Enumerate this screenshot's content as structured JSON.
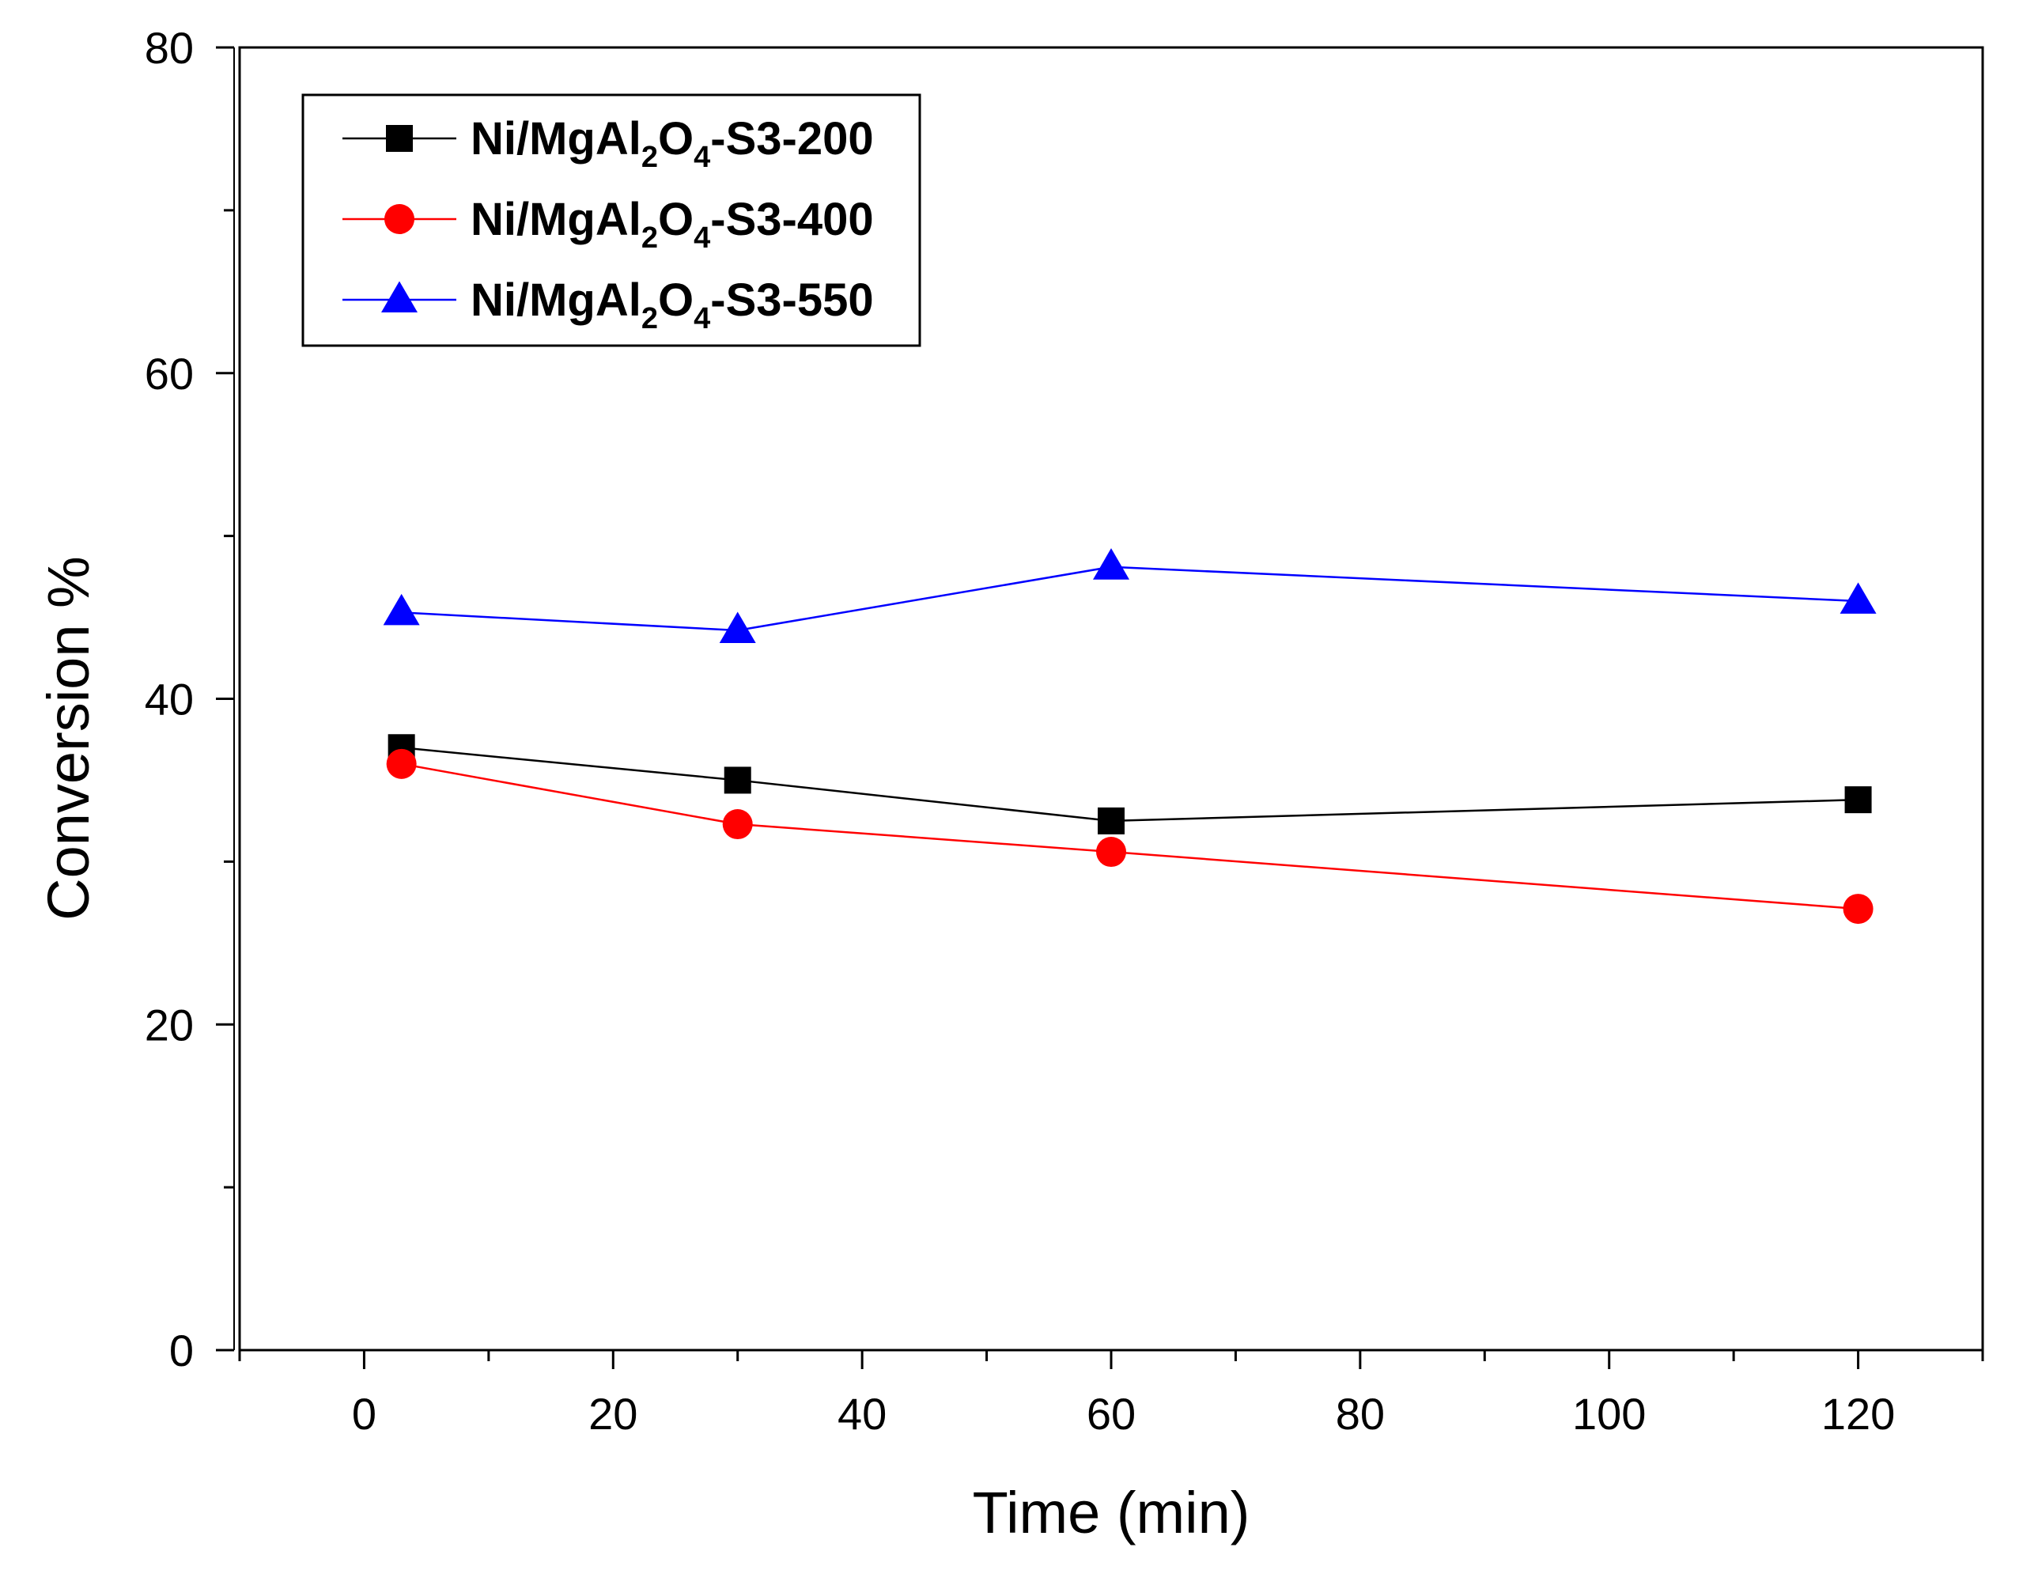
{
  "chart_data": {
    "type": "line",
    "title": "",
    "xlabel": "Time (min)",
    "ylabel": "Conversion %",
    "xlim": [
      -10,
      130
    ],
    "ylim": [
      0,
      80
    ],
    "x_ticks": [
      0,
      20,
      40,
      60,
      80,
      100,
      120
    ],
    "y_ticks": [
      0,
      20,
      40,
      60,
      80
    ],
    "x_tick_labels": [
      "0",
      "20",
      "40",
      "60",
      "80",
      "100",
      "120"
    ],
    "y_tick_labels": [
      "0",
      "20",
      "40",
      "60",
      "80"
    ],
    "x": [
      3,
      30,
      60,
      120
    ],
    "legend_position": "top-left",
    "series": [
      {
        "name": "Ni/MgAl2O4-S3-200",
        "legend_parts": {
          "a": "Ni/MgAl",
          "sub1": "2",
          "b": "O",
          "sub2": "4",
          "c": "-S3-200"
        },
        "color": "#000000",
        "marker": "square",
        "values": [
          37,
          35,
          32.5,
          33.8
        ]
      },
      {
        "name": "Ni/MgAl2O4-S3-400",
        "legend_parts": {
          "a": "Ni/MgAl",
          "sub1": "2",
          "b": "O",
          "sub2": "4",
          "c": "-S3-400"
        },
        "color": "#ff0000",
        "marker": "circle",
        "values": [
          36,
          32.3,
          30.6,
          27.1
        ]
      },
      {
        "name": "Ni/MgAl2O4-S3-550",
        "legend_parts": {
          "a": "Ni/MgAl",
          "sub1": "2",
          "b": "O",
          "sub2": "4",
          "c": "-S3-550"
        },
        "color": "#0000ff",
        "marker": "triangle",
        "values": [
          45.3,
          44.2,
          48.1,
          46
        ]
      }
    ]
  }
}
